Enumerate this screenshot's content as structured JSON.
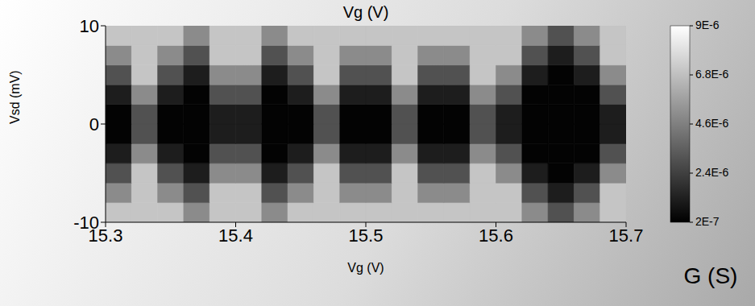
{
  "chart_data": {
    "type": "heatmap",
    "title": "Vg (V)",
    "x_label": "Vg (V)",
    "y_label": "Vsd (mV)",
    "xlim": [
      15.3,
      15.7
    ],
    "xticks": [
      15.3,
      15.4,
      15.5,
      15.6,
      15.7
    ],
    "ylim": [
      -10,
      10
    ],
    "yticks": [
      -10,
      0,
      10
    ],
    "x_edges": [
      15.3,
      15.32,
      15.34,
      15.36,
      15.38,
      15.4,
      15.42,
      15.44,
      15.46,
      15.48,
      15.5,
      15.52,
      15.54,
      15.56,
      15.58,
      15.6,
      15.62,
      15.64,
      15.66,
      15.68,
      15.7
    ],
    "y_edges": [
      -10,
      -8,
      -6,
      -4,
      -2,
      0,
      2,
      4,
      6,
      8,
      10
    ],
    "z": [
      [
        7e-06,
        7e-06,
        7e-06,
        5e-06,
        7e-06,
        7e-06,
        5e-06,
        7e-06,
        7e-06,
        7e-06,
        7e-06,
        7e-06,
        7e-06,
        7e-06,
        7e-06,
        7e-06,
        5e-06,
        3e-06,
        5e-06,
        7e-06
      ],
      [
        5e-06,
        7e-06,
        5e-06,
        3e-06,
        7e-06,
        7e-06,
        3e-06,
        5e-06,
        7e-06,
        5e-06,
        5e-06,
        7e-06,
        5e-06,
        5e-06,
        7e-06,
        7e-06,
        3e-06,
        1.2e-06,
        3e-06,
        7e-06
      ],
      [
        3e-06,
        7e-06,
        3e-06,
        1.2e-06,
        5e-06,
        5e-06,
        1.2e-06,
        3e-06,
        7e-06,
        3e-06,
        3e-06,
        7e-06,
        3e-06,
        3e-06,
        7e-06,
        5e-06,
        1.2e-06,
        3e-07,
        1.2e-06,
        5e-06
      ],
      [
        1.2e-06,
        5e-06,
        1.2e-06,
        3e-07,
        3e-06,
        3e-06,
        3e-07,
        1.2e-06,
        5e-06,
        1.2e-06,
        1.2e-06,
        5e-06,
        1.2e-06,
        1.2e-06,
        5e-06,
        3e-06,
        3e-07,
        3e-07,
        3e-07,
        3e-06
      ],
      [
        3e-07,
        3e-06,
        3e-07,
        3e-07,
        1.2e-06,
        1.2e-06,
        3e-07,
        3e-07,
        3e-06,
        3e-07,
        3e-07,
        3e-06,
        3e-07,
        3e-07,
        3e-06,
        1.2e-06,
        3e-07,
        3e-07,
        3e-07,
        1.2e-06
      ],
      [
        3e-07,
        3e-06,
        3e-07,
        3e-07,
        1.2e-06,
        1.2e-06,
        3e-07,
        3e-07,
        3e-06,
        3e-07,
        3e-07,
        3e-06,
        3e-07,
        3e-07,
        3e-06,
        1.2e-06,
        3e-07,
        3e-07,
        3e-07,
        1.2e-06
      ],
      [
        1.2e-06,
        5e-06,
        1.2e-06,
        3e-07,
        3e-06,
        3e-06,
        3e-07,
        1.2e-06,
        5e-06,
        1.2e-06,
        1.2e-06,
        5e-06,
        1.2e-06,
        1.2e-06,
        5e-06,
        3e-06,
        3e-07,
        3e-07,
        3e-07,
        3e-06
      ],
      [
        3e-06,
        7e-06,
        3e-06,
        1.2e-06,
        5e-06,
        5e-06,
        1.2e-06,
        3e-06,
        7e-06,
        3e-06,
        3e-06,
        7e-06,
        3e-06,
        3e-06,
        7e-06,
        5e-06,
        1.2e-06,
        3e-07,
        1.2e-06,
        5e-06
      ],
      [
        5e-06,
        7e-06,
        5e-06,
        3e-06,
        7e-06,
        7e-06,
        3e-06,
        5e-06,
        7e-06,
        5e-06,
        5e-06,
        7e-06,
        5e-06,
        5e-06,
        7e-06,
        7e-06,
        3e-06,
        1.2e-06,
        3e-06,
        7e-06
      ],
      [
        7e-06,
        7e-06,
        7e-06,
        5e-06,
        7e-06,
        7e-06,
        5e-06,
        7e-06,
        7e-06,
        7e-06,
        7e-06,
        7e-06,
        7e-06,
        7e-06,
        7e-06,
        7e-06,
        5e-06,
        3e-06,
        5e-06,
        7e-06
      ]
    ],
    "colorbar": {
      "label": "G (S)",
      "range": [
        2e-07,
        9e-06
      ],
      "ticks": [
        {
          "value": 9e-06,
          "label": "9E-6"
        },
        {
          "value": 6.8e-06,
          "label": "6.8E-6"
        },
        {
          "value": 4.6e-06,
          "label": "4.6E-6"
        },
        {
          "value": 2.4e-06,
          "label": "2.4E-6"
        },
        {
          "value": 2e-07,
          "label": "2E-7"
        }
      ]
    }
  }
}
